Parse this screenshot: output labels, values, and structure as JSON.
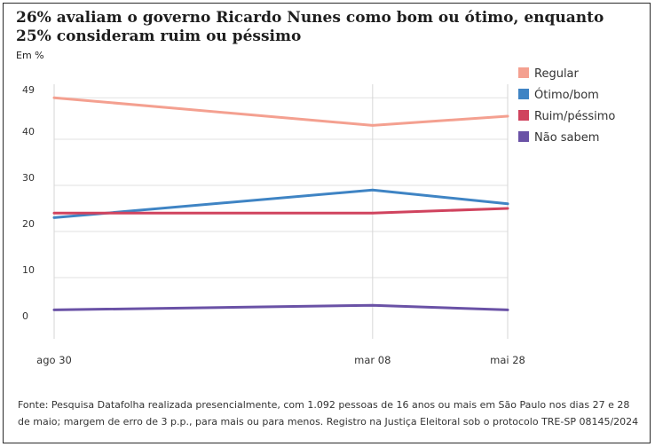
{
  "chart_data": {
    "type": "line",
    "title": "26% avaliam o governo Ricardo Nunes como bom ou ótimo, enquanto 25% consideram ruim ou péssimo",
    "unit_label": "Em %",
    "categories": [
      "ago 30",
      "mar 08",
      "mai 28"
    ],
    "x_dates": [
      "2023-08-30",
      "2024-03-08",
      "2024-05-28"
    ],
    "yticks": [
      0,
      10,
      20,
      30,
      40,
      49
    ],
    "ylim": [
      0,
      49
    ],
    "grid": true,
    "legend_position": "top-right",
    "series": [
      {
        "name": "Regular",
        "color": "#f4a090",
        "values": [
          49,
          43,
          45
        ]
      },
      {
        "name": "Ótimo/bom",
        "color": "#3f84c4",
        "values": [
          23,
          29,
          26
        ]
      },
      {
        "name": "Ruim/péssimo",
        "color": "#d0435e",
        "values": [
          24,
          24,
          25
        ]
      },
      {
        "name": "Não sabem",
        "color": "#6a52a6",
        "values": [
          3,
          4,
          3
        ]
      }
    ]
  },
  "footer": {
    "source": "Fonte: Pesquisa Datafolha realizada presencialmente, com 1.092 pessoas de 16 anos ou mais em São Paulo nos dias 27 e 28 de maio; margem de erro de 3 p.p., para mais ou para menos. Registro na Justiça Eleitoral sob o protocolo TRE-SP 08145/2024"
  }
}
